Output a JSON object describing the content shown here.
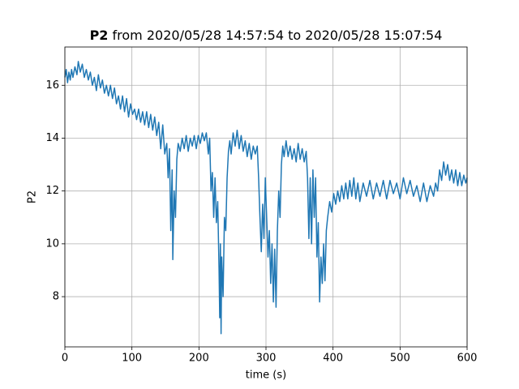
{
  "chart_data": {
    "type": "line",
    "title": [
      "P2",
      "from 2020/05/28 14:57:54 to 2020/05/28 15:07:54"
    ],
    "xlabel": "time (s)",
    "ylabel": "P2",
    "color": "#1f77b4",
    "grid": true,
    "xlim": [
      0,
      600
    ],
    "xticks": [
      0,
      100,
      200,
      300,
      400,
      500,
      600
    ],
    "ylim": [
      6.1,
      17.45
    ],
    "yticks": [
      8,
      10,
      12,
      14,
      16
    ],
    "x": [
      0,
      2,
      4,
      6,
      8,
      10,
      12,
      15,
      18,
      20,
      23,
      26,
      29,
      32,
      35,
      38,
      41,
      44,
      47,
      50,
      53,
      56,
      59,
      62,
      65,
      68,
      71,
      74,
      77,
      80,
      83,
      86,
      89,
      92,
      95,
      98,
      101,
      104,
      107,
      110,
      113,
      116,
      119,
      122,
      125,
      128,
      131,
      134,
      137,
      140,
      143,
      146,
      149,
      152,
      154,
      156,
      158,
      160,
      161,
      163,
      165,
      167,
      169,
      172,
      175,
      178,
      181,
      184,
      187,
      190,
      193,
      196,
      199,
      202,
      205,
      208,
      211,
      214,
      216,
      218,
      220,
      222,
      224,
      226,
      228,
      230,
      231,
      232,
      233,
      234,
      236,
      238,
      240,
      242,
      244,
      246,
      248,
      251,
      254,
      257,
      260,
      263,
      266,
      269,
      272,
      275,
      278,
      281,
      284,
      287,
      289,
      291,
      293,
      295,
      297,
      299,
      301,
      303,
      305,
      307,
      309,
      311,
      313,
      315,
      317,
      319,
      321,
      323,
      325,
      327,
      330,
      333,
      336,
      339,
      342,
      345,
      348,
      351,
      354,
      357,
      360,
      362,
      364,
      366,
      368,
      370,
      372,
      374,
      376,
      378,
      380,
      382,
      384,
      386,
      388,
      390,
      392,
      395,
      398,
      401,
      404,
      407,
      410,
      413,
      416,
      419,
      422,
      425,
      428,
      431,
      434,
      437,
      440,
      445,
      450,
      455,
      460,
      465,
      470,
      475,
      480,
      485,
      490,
      495,
      500,
      505,
      510,
      515,
      520,
      525,
      530,
      535,
      540,
      545,
      550,
      553,
      556,
      559,
      562,
      565,
      568,
      571,
      574,
      577,
      580,
      583,
      586,
      589,
      592,
      595,
      598,
      600
    ],
    "values": [
      16.3,
      16.6,
      16.1,
      16.5,
      16.2,
      16.6,
      16.3,
      16.7,
      16.4,
      16.9,
      16.5,
      16.8,
      16.3,
      16.6,
      16.2,
      16.5,
      16.0,
      16.3,
      15.8,
      16.4,
      15.9,
      16.2,
      15.7,
      16.0,
      15.6,
      16.0,
      15.5,
      15.9,
      15.3,
      15.6,
      15.1,
      15.6,
      15.0,
      15.5,
      14.8,
      15.3,
      14.9,
      15.1,
      14.7,
      15.1,
      14.6,
      15.0,
      14.5,
      15.0,
      14.4,
      14.9,
      14.3,
      14.8,
      14.1,
      14.6,
      13.6,
      14.5,
      13.4,
      13.8,
      12.5,
      13.6,
      10.5,
      12.8,
      9.4,
      12.0,
      11.0,
      13.2,
      13.8,
      13.5,
      14.0,
      13.6,
      14.1,
      13.5,
      14.0,
      13.7,
      14.1,
      13.6,
      14.1,
      13.8,
      14.2,
      13.9,
      14.2,
      13.4,
      14.0,
      12.0,
      12.7,
      11.0,
      12.5,
      10.8,
      11.6,
      9.0,
      7.2,
      10.0,
      6.6,
      9.5,
      8.0,
      11.0,
      10.5,
      12.5,
      13.5,
      13.9,
      13.4,
      14.2,
      13.7,
      14.3,
      13.6,
      14.1,
      13.5,
      13.9,
      13.3,
      13.8,
      13.2,
      13.7,
      13.4,
      13.7,
      12.5,
      11.0,
      9.7,
      11.5,
      10.2,
      12.5,
      11.0,
      9.5,
      10.5,
      8.5,
      10.0,
      7.8,
      9.8,
      7.6,
      10.5,
      12.0,
      11.0,
      13.0,
      13.7,
      13.3,
      13.9,
      13.3,
      13.7,
      13.2,
      13.6,
      13.1,
      13.8,
      13.2,
      13.6,
      13.1,
      13.5,
      12.5,
      10.2,
      12.5,
      10.0,
      12.8,
      11.0,
      12.5,
      9.5,
      10.8,
      7.8,
      9.5,
      8.5,
      10.0,
      8.6,
      10.5,
      11.0,
      11.6,
      11.2,
      11.9,
      11.5,
      12.0,
      11.6,
      12.2,
      11.7,
      12.3,
      11.7,
      12.4,
      11.8,
      12.5,
      11.7,
      12.3,
      11.6,
      12.3,
      11.8,
      12.4,
      11.7,
      12.3,
      11.8,
      12.4,
      11.7,
      12.4,
      11.9,
      12.3,
      11.7,
      12.5,
      11.9,
      12.4,
      11.8,
      12.2,
      11.6,
      12.3,
      11.6,
      12.2,
      11.8,
      12.3,
      12.0,
      12.8,
      12.4,
      13.1,
      12.6,
      13.0,
      12.4,
      12.8,
      12.3,
      12.8,
      12.2,
      12.7,
      12.2,
      12.6,
      12.3,
      12.5
    ]
  }
}
